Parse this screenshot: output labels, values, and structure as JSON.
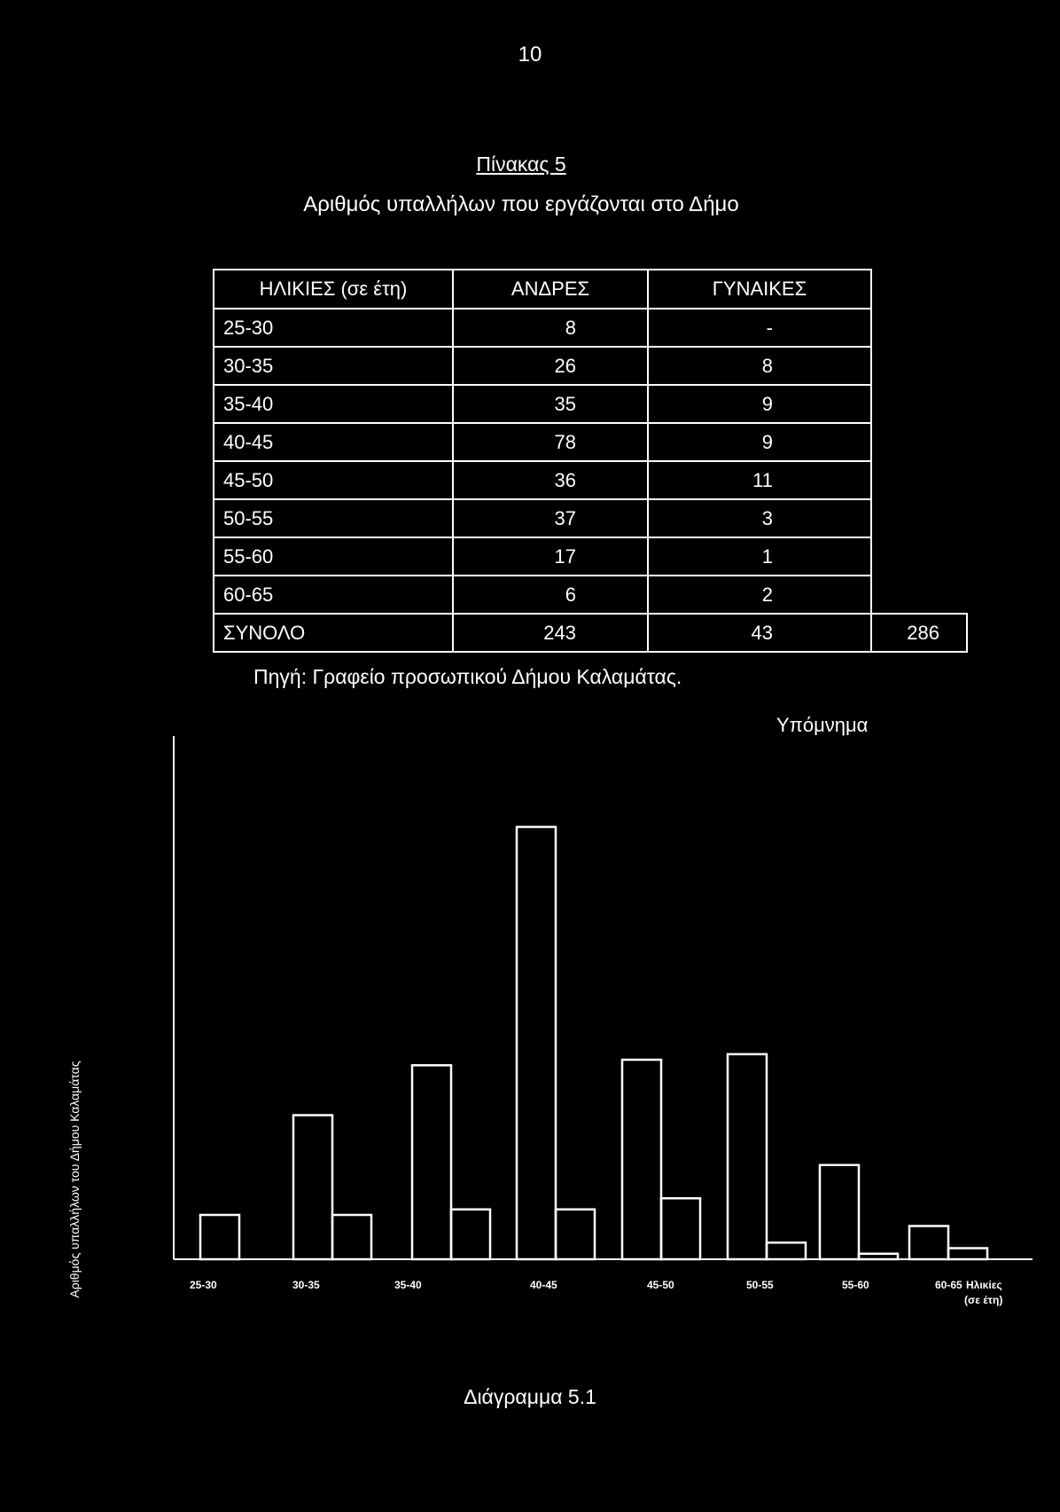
{
  "page_number": "10",
  "table": {
    "label": "Πίνακας 5",
    "title": "Αριθμός υπαλλήλων που εργάζονται στο Δήμο",
    "headers": [
      "ΗΛΙΚΙΕΣ (σε έτη)",
      "ΑΝΔΡΕΣ",
      "ΓΥΝΑΙΚΕΣ"
    ],
    "rows": [
      {
        "age": "25-30",
        "men": "8",
        "women": "-"
      },
      {
        "age": "30-35",
        "men": "26",
        "women": "8"
      },
      {
        "age": "35-40",
        "men": "35",
        "women": "9"
      },
      {
        "age": "40-45",
        "men": "78",
        "women": "9"
      },
      {
        "age": "45-50",
        "men": "36",
        "women": "11"
      },
      {
        "age": "50-55",
        "men": "37",
        "women": "3"
      },
      {
        "age": "55-60",
        "men": "17",
        "women": "1"
      },
      {
        "age": "60-65",
        "men": "6",
        "women": "2"
      }
    ],
    "total": {
      "label": "ΣΥΝΟΛΟ",
      "men": "243",
      "women": "43",
      "all": "286"
    },
    "source": "Πηγή: Γραφείο προσωπικού Δήμου Καλαμάτας."
  },
  "chart_data": {
    "type": "bar",
    "legend_title": "Υπόμνημα",
    "ylabel": "Αριθμός υπαλλήλων του Δήμου Καλαμάτας",
    "xlabel": "Ηλικίες (σε έτη)",
    "categories": [
      "25-30",
      "30-35",
      "35-40",
      "40-45",
      "45-50",
      "50-55",
      "55-60",
      "60-65"
    ],
    "series": [
      {
        "values": [
          8,
          26,
          35,
          78,
          36,
          37,
          17,
          6
        ]
      },
      {
        "values": [
          0,
          8,
          9,
          9,
          11,
          3,
          1,
          2
        ]
      }
    ],
    "ylim": [
      0,
      80
    ]
  },
  "caption": "Διάγραμμα 5.1"
}
